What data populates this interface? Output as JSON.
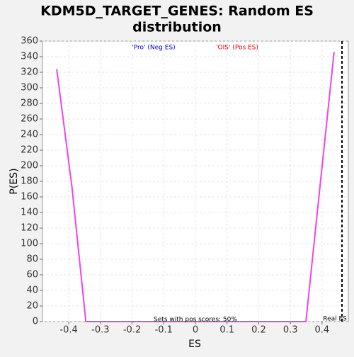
{
  "chart_data": {
    "type": "line",
    "title": "KDM5D_TARGET_GENES: Random ES distribution",
    "x_label": "ES",
    "y_label": "P(ES)",
    "x": [
      -0.438,
      -0.39,
      -0.346,
      0.349,
      0.39,
      0.438
    ],
    "series": [
      {
        "name": "P(ES)",
        "color": "#ee44ee",
        "values": [
          324,
          173,
          0,
          0,
          160,
          346
        ]
      }
    ],
    "xlim": [
      -0.483,
      0.483
    ],
    "xticks": [
      -0.4,
      -0.3,
      -0.2,
      -0.1,
      0.0,
      0.1,
      0.2,
      0.3,
      0.4
    ],
    "ylim": [
      0,
      360
    ],
    "yticks": [
      0,
      20,
      40,
      60,
      80,
      100,
      120,
      140,
      160,
      180,
      200,
      220,
      240,
      260,
      280,
      300,
      320,
      340,
      360
    ],
    "grid": true,
    "legend": [
      {
        "label": "'Pro' (Neg ES)",
        "color": "#0000cc"
      },
      {
        "label": "'OIS' (Pos ES)",
        "color": "#dd0000"
      }
    ],
    "real_es": {
      "value": 0.463,
      "label": "Real ES"
    },
    "annotation": "Sets with pos scores: 50%"
  }
}
